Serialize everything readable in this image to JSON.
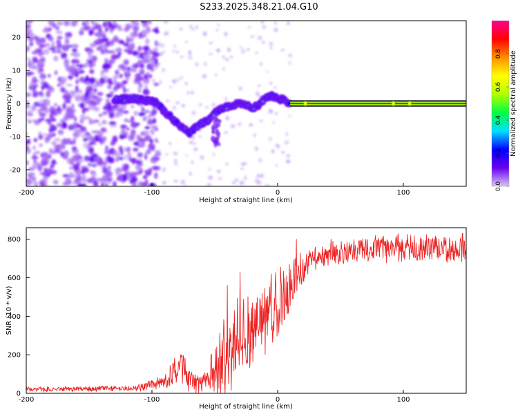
{
  "figure": {
    "title": "S233.2025.348.21.04.G10"
  },
  "chart_data": [
    {
      "type": "heatmap",
      "title": "S233.2025.348.21.04.G10",
      "xlabel": "Height of straight line (km)",
      "ylabel": "Frequency (Hz)",
      "xlim": [
        -200,
        150
      ],
      "ylim": [
        -25,
        25
      ],
      "xticks": [
        -200,
        -100,
        0,
        100
      ],
      "xtick_labels": [
        "-200",
        "-100",
        "0",
        "100"
      ],
      "yticks": [
        -20,
        -10,
        0,
        10,
        20
      ],
      "ytick_labels": [
        "-20",
        "-10",
        "0",
        "10",
        "20"
      ],
      "colorbar": {
        "label": "Normalized spectral amplitude",
        "range": [
          0,
          1
        ],
        "ticks": [
          0.0,
          0.2,
          0.4,
          0.6,
          0.8
        ],
        "tick_labels": [
          "0.0",
          "0.2",
          "0.4",
          "0.6",
          "0.8"
        ],
        "colors": [
          "#d8c8f4",
          "#6a00f0",
          "#0000ff",
          "#00e0ff",
          "#00ff40",
          "#b0ff00",
          "#ffff00",
          "#ff9000",
          "#ff0000",
          "#ff0090"
        ]
      },
      "noise_region_x": [
        -200,
        -100
      ],
      "signal_trace": [
        {
          "x": -130,
          "f": 1.0
        },
        {
          "x": -120,
          "f": 1.5
        },
        {
          "x": -110,
          "f": 1.2
        },
        {
          "x": -100,
          "f": 0.8
        },
        {
          "x": -95,
          "f": 0.0
        },
        {
          "x": -90,
          "f": -2.5
        },
        {
          "x": -85,
          "f": -4.0
        },
        {
          "x": -80,
          "f": -6.0
        },
        {
          "x": -75,
          "f": -7.5
        },
        {
          "x": -70,
          "f": -9.0
        },
        {
          "x": -65,
          "f": -7.0
        },
        {
          "x": -60,
          "f": -6.0
        },
        {
          "x": -55,
          "f": -5.0
        },
        {
          "x": -50,
          "f": -3.0
        },
        {
          "x": -45,
          "f": -1.5
        },
        {
          "x": -40,
          "f": -1.0
        },
        {
          "x": -35,
          "f": -0.5
        },
        {
          "x": -30,
          "f": 0.0
        },
        {
          "x": -25,
          "f": -0.5
        },
        {
          "x": -20,
          "f": -1.5
        },
        {
          "x": -15,
          "f": -0.5
        },
        {
          "x": -10,
          "f": 1.5
        },
        {
          "x": -5,
          "f": 2.5
        },
        {
          "x": 0,
          "f": 1.5
        },
        {
          "x": 5,
          "f": 1.0
        },
        {
          "x": 10,
          "f": 0.0
        },
        {
          "x": 150,
          "f": 0.0
        }
      ],
      "steady_band": {
        "x_start": 10,
        "x_end": 150,
        "f": 0
      }
    },
    {
      "type": "line",
      "xlabel": "Height of straight line (km)",
      "ylabel": "SNR (10 * v/v)",
      "xlim": [
        -200,
        150
      ],
      "ylim": [
        0,
        860
      ],
      "xticks": [
        -200,
        -100,
        0,
        100
      ],
      "xtick_labels": [
        "-200",
        "-100",
        "0",
        "100"
      ],
      "yticks": [
        0,
        200,
        400,
        600,
        800
      ],
      "ytick_labels": [
        "0",
        "200",
        "400",
        "600",
        "800"
      ],
      "series": [
        {
          "name": "SNR",
          "color": "#ee2222",
          "envelope": [
            {
              "x": -200,
              "base": 20,
              "amp": 15
            },
            {
              "x": -120,
              "base": 25,
              "amp": 15
            },
            {
              "x": -105,
              "base": 35,
              "amp": 25
            },
            {
              "x": -90,
              "base": 60,
              "amp": 40
            },
            {
              "x": -82,
              "base": 110,
              "amp": 90
            },
            {
              "x": -77,
              "base": 140,
              "amp": 100
            },
            {
              "x": -70,
              "base": 70,
              "amp": 80
            },
            {
              "x": -62,
              "base": 40,
              "amp": 50
            },
            {
              "x": -55,
              "base": 80,
              "amp": 80
            },
            {
              "x": -45,
              "base": 200,
              "amp": 250
            },
            {
              "x": -35,
              "base": 250,
              "amp": 250
            },
            {
              "x": -25,
              "base": 290,
              "amp": 220
            },
            {
              "x": -15,
              "base": 360,
              "amp": 200
            },
            {
              "x": -5,
              "base": 420,
              "amp": 190
            },
            {
              "x": 5,
              "base": 500,
              "amp": 180
            },
            {
              "x": 15,
              "base": 600,
              "amp": 120
            },
            {
              "x": 25,
              "base": 690,
              "amp": 80
            },
            {
              "x": 40,
              "base": 730,
              "amp": 70
            },
            {
              "x": 60,
              "base": 750,
              "amp": 70
            },
            {
              "x": 100,
              "base": 750,
              "amp": 80
            },
            {
              "x": 150,
              "base": 755,
              "amp": 80
            }
          ],
          "spikes": [
            {
              "x": -77,
              "y": 200
            },
            {
              "x": -40,
              "y": 560
            },
            {
              "x": -30,
              "y": 630
            },
            {
              "x": -20,
              "y": 470
            },
            {
              "x": -5,
              "y": 620
            },
            {
              "x": 15,
              "y": 800
            },
            {
              "x": 96,
              "y": 830
            },
            {
              "x": 147,
              "y": 830
            }
          ]
        }
      ]
    }
  ]
}
